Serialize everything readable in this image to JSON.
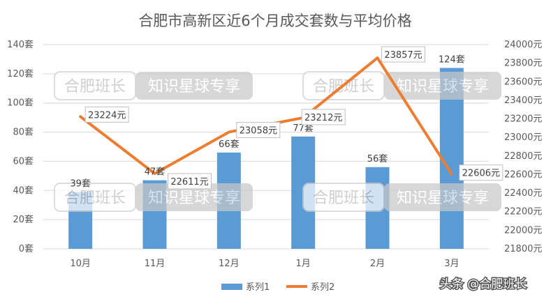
{
  "chart_data": {
    "type": "bar+line",
    "title": "合肥市高新区近6个月成交套数与平均价格",
    "categories": [
      "10月",
      "11月",
      "12月",
      "1月",
      "2月",
      "3月"
    ],
    "series": [
      {
        "name": "系列1",
        "type": "bar",
        "axis": "left",
        "values": [
          39,
          47,
          66,
          77,
          56,
          124
        ],
        "labels": [
          "39套",
          "47套",
          "66套",
          "77套",
          "56套",
          "124套"
        ],
        "color": "#5b9bd5"
      },
      {
        "name": "系列2",
        "type": "line",
        "axis": "right",
        "values": [
          23224,
          22611,
          23058,
          23212,
          23857,
          22606
        ],
        "labels": [
          "23224元",
          "22611元",
          "23058元",
          "23212元",
          "23857元",
          "22606元"
        ],
        "color": "#ed7d31"
      }
    ],
    "y_left": {
      "range": [
        0,
        140
      ],
      "ticks": [
        {
          "value": 0,
          "label": "0套"
        },
        {
          "value": 20,
          "label": "20套"
        },
        {
          "value": 40,
          "label": "40套"
        },
        {
          "value": 60,
          "label": "60套"
        },
        {
          "value": 80,
          "label": "80套"
        },
        {
          "value": 100,
          "label": "100套"
        },
        {
          "value": 120,
          "label": "120套"
        },
        {
          "value": 140,
          "label": "140套"
        }
      ]
    },
    "y_right": {
      "range": [
        21800,
        24000
      ],
      "ticks": [
        {
          "value": 21800,
          "label": "21800元"
        },
        {
          "value": 22000,
          "label": "22000元"
        },
        {
          "value": 22200,
          "label": "22200元"
        },
        {
          "value": 22400,
          "label": "22400元"
        },
        {
          "value": 22600,
          "label": "22600元"
        },
        {
          "value": 22800,
          "label": "22800元"
        },
        {
          "value": 23000,
          "label": "23000元"
        },
        {
          "value": 23200,
          "label": "23200元"
        },
        {
          "value": 23400,
          "label": "23400元"
        },
        {
          "value": 23600,
          "label": "23600元"
        },
        {
          "value": 23800,
          "label": "23800元"
        },
        {
          "value": 24000,
          "label": "24000元"
        }
      ]
    },
    "grid": true,
    "legend_position": "bottom"
  },
  "watermark": {
    "left": "合肥班长",
    "right": "知识星球专享"
  },
  "credit": "头条 @合肥班长",
  "colors": {
    "bar": "#5b9bd5",
    "line": "#ed7d31",
    "grid": "#d9d9d9",
    "text": "#595959"
  }
}
